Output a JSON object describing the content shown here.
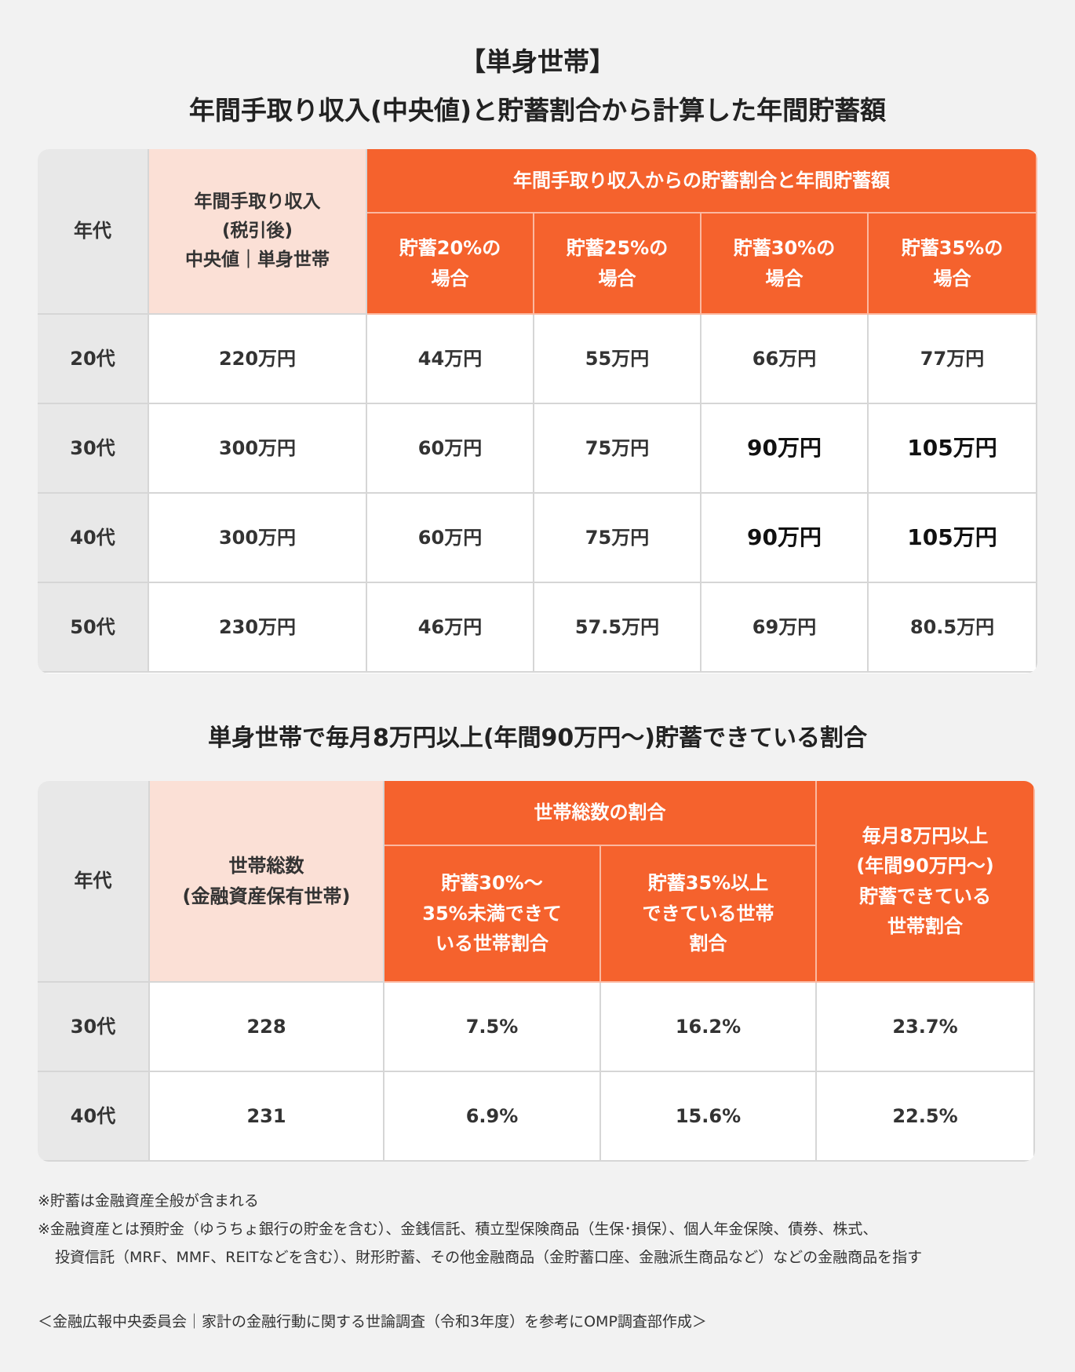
{
  "title": {
    "line1": "【単身世帯】",
    "line2": "年間手取り収入(中央値)と貯蓄割合から計算した年間貯蓄額"
  },
  "table1": {
    "headers": {
      "age": "年代",
      "income": [
        "年間手取り収入",
        "(税引後)",
        "中央値｜単身世帯"
      ],
      "group": "年間手取り収入からの貯蓄割合と年間貯蓄額",
      "cols": [
        [
          "貯蓄20%の",
          "場合"
        ],
        [
          "貯蓄25%の",
          "場合"
        ],
        [
          "貯蓄30%の",
          "場合"
        ],
        [
          "貯蓄35%の",
          "場合"
        ]
      ]
    },
    "rows": [
      [
        "20代",
        "220万円",
        "44万円",
        "55万円",
        "66万円",
        "77万円"
      ],
      [
        "30代",
        "300万円",
        "60万円",
        "75万円",
        "90万円",
        "105万円"
      ],
      [
        "40代",
        "300万円",
        "60万円",
        "75万円",
        "90万円",
        "105万円"
      ],
      [
        "50代",
        "230万円",
        "46万円",
        "57.5万円",
        "69万円",
        "80.5万円"
      ]
    ]
  },
  "subtitle": "単身世帯で毎月8万円以上(年間90万円～)貯蓄できている割合",
  "table2": {
    "headers": {
      "age": "年代",
      "total": [
        "世帯総数",
        "(金融資産保有世帯)"
      ],
      "group": "世帯総数の割合",
      "cols": [
        [
          "貯蓄30%～",
          "35%未満できて",
          "いる世帯割合"
        ],
        [
          "貯蓄35%以上",
          "できている世帯",
          "割合"
        ]
      ],
      "last": [
        "毎月8万円以上",
        "(年間90万円～)",
        "貯蓄できている",
        "世帯割合"
      ]
    },
    "rows": [
      [
        "30代",
        "228",
        "7.5%",
        "16.2%",
        "23.7%"
      ],
      [
        "40代",
        "231",
        "6.9%",
        "15.6%",
        "22.5%"
      ]
    ]
  },
  "notes": [
    "※貯蓄は金融資産全般が含まれる",
    [
      "※金融資産とは預貯金（ゆうちょ銀行の貯金を含む）、金銭信託、積立型保険商品（生保･損保）、個人年金保険、債券、株式、",
      "投資信託（MRF、MMF、REITなどを含む）、財形貯蓄、その他金融商品（金貯蓄口座、金融派生商品など）などの金融商品を指す"
    ]
  ],
  "source": "＜金融広報中央委員会｜家計の金融行動に関する世論調査（令和3年度）を参考にOMP調査部作成＞"
}
